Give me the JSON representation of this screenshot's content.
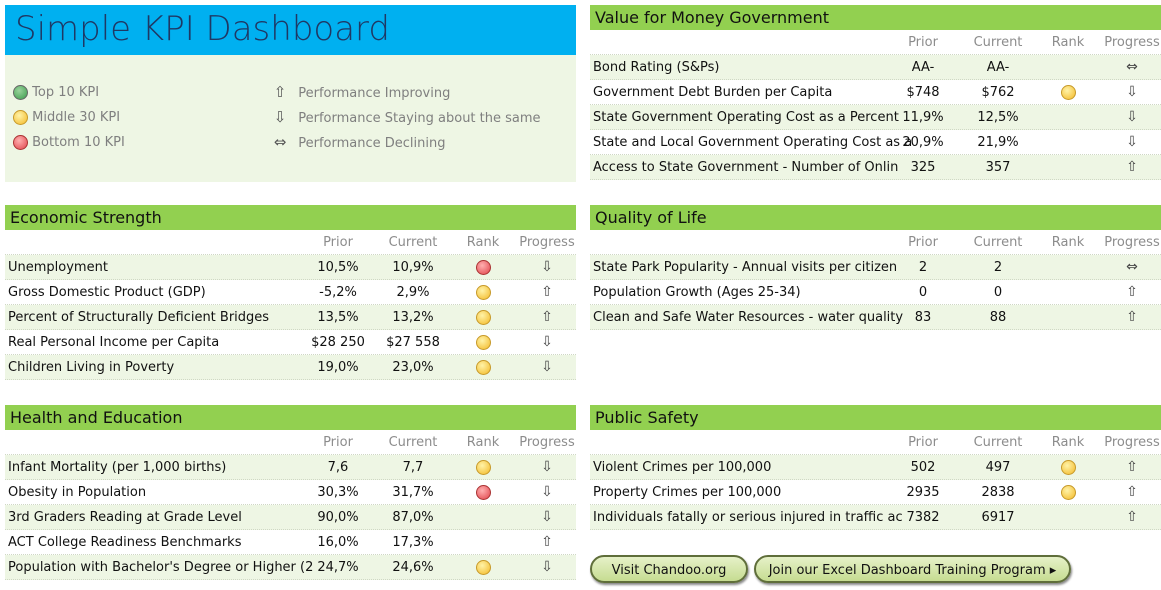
{
  "title": "Simple KPI Dashboard",
  "legend": {
    "ranks": [
      {
        "color": "green",
        "label": "Top 10 KPI"
      },
      {
        "color": "yellow",
        "label": "Middle 30 KPI"
      },
      {
        "color": "red",
        "label": "Bottom 10 KPI"
      }
    ],
    "progress": [
      {
        "icon": "up",
        "label": "Performance Improving"
      },
      {
        "icon": "down",
        "label": "Performance Staying about the same"
      },
      {
        "icon": "both",
        "label": "Performance Declining"
      }
    ]
  },
  "columns": {
    "prior": "Prior",
    "current": "Current",
    "rank": "Rank",
    "progress": "Progress"
  },
  "colors": {
    "header_blue": "#00b0f0",
    "section_green": "#92d050",
    "row_alt": "#eef6e4"
  },
  "sections": [
    {
      "id": "value-for-money",
      "title": "Value for Money Government",
      "rows": [
        {
          "name": "Bond Rating (S&Ps)",
          "prior": "AA-",
          "current": "AA-",
          "rank": "",
          "progress": "both"
        },
        {
          "name": "Government Debt Burden per Capita",
          "prior": "$748",
          "current": "$762",
          "rank": "yellow",
          "progress": "down"
        },
        {
          "name": "State Government Operating Cost as a Percent",
          "prior": "11,9%",
          "current": "12,5%",
          "rank": "",
          "progress": "down"
        },
        {
          "name": "State and Local Government Operating Cost as a",
          "prior": "20,9%",
          "current": "21,9%",
          "rank": "",
          "progress": "down"
        },
        {
          "name": "Access to State Government - Number of Onlin",
          "prior": "325",
          "current": "357",
          "rank": "",
          "progress": "up"
        }
      ]
    },
    {
      "id": "economic-strength",
      "title": "Economic Strength",
      "rows": [
        {
          "name": "Unemployment",
          "prior": "10,5%",
          "current": "10,9%",
          "rank": "red",
          "progress": "down"
        },
        {
          "name": "Gross Domestic Product (GDP)",
          "prior": "-5,2%",
          "current": "2,9%",
          "rank": "yellow",
          "progress": "up"
        },
        {
          "name": "Percent of Structurally Deficient Bridges",
          "prior": "13,5%",
          "current": "13,2%",
          "rank": "yellow",
          "progress": "up"
        },
        {
          "name": "Real Personal Income per Capita",
          "prior": "$28 250",
          "current": "$27 558",
          "rank": "yellow",
          "progress": "down"
        },
        {
          "name": "Children Living in Poverty",
          "prior": "19,0%",
          "current": "23,0%",
          "rank": "yellow",
          "progress": "down"
        }
      ]
    },
    {
      "id": "quality-of-life",
      "title": "Quality of Life",
      "rows": [
        {
          "name": "State Park Popularity - Annual visits per citizen",
          "prior": "2",
          "current": "2",
          "rank": "",
          "progress": "both"
        },
        {
          "name": "Population Growth (Ages 25-34)",
          "prior": "0",
          "current": "0",
          "rank": "",
          "progress": "up"
        },
        {
          "name": "Clean and Safe Water Resources - water quality",
          "prior": "83",
          "current": "88",
          "rank": "",
          "progress": "up"
        }
      ]
    },
    {
      "id": "health-and-education",
      "title": "Health and Education",
      "rows": [
        {
          "name": "Infant Mortality (per 1,000 births)",
          "prior": "7,6",
          "current": "7,7",
          "rank": "yellow",
          "progress": "down"
        },
        {
          "name": "Obesity in Population",
          "prior": "30,3%",
          "current": "31,7%",
          "rank": "red",
          "progress": "down"
        },
        {
          "name": "3rd Graders Reading at Grade Level",
          "prior": "90,0%",
          "current": "87,0%",
          "rank": "",
          "progress": "down"
        },
        {
          "name": "ACT College Readiness Benchmarks",
          "prior": "16,0%",
          "current": "17,3%",
          "rank": "",
          "progress": "up"
        },
        {
          "name": "Population with Bachelor's Degree or Higher (2",
          "prior": "24,7%",
          "current": "24,6%",
          "rank": "yellow",
          "progress": "down"
        }
      ]
    },
    {
      "id": "public-safety",
      "title": "Public Safety",
      "rows": [
        {
          "name": "Violent Crimes per 100,000",
          "prior": "502",
          "current": "497",
          "rank": "yellow",
          "progress": "up"
        },
        {
          "name": "Property Crimes per 100,000",
          "prior": "2935",
          "current": "2838",
          "rank": "yellow",
          "progress": "up"
        },
        {
          "name": "Individuals fatally or serious injured in traffic ac",
          "prior": "7382",
          "current": "6917",
          "rank": "",
          "progress": "up"
        }
      ]
    }
  ],
  "buttons": {
    "visit": "Visit Chandoo.org",
    "join": "Join our Excel Dashboard Training Program ▸"
  }
}
